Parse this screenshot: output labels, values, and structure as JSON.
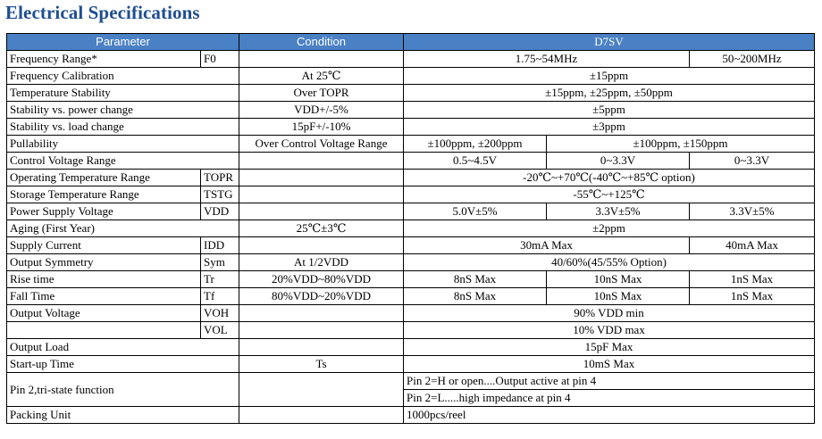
{
  "title": "Electrical Specifications",
  "headers": {
    "parameter": "Parameter",
    "condition": "Condition",
    "model": "D7SV"
  },
  "rows": {
    "freq_range": {
      "param": "Frequency Range*",
      "sym": "F0",
      "v1": "1.75~54MHz",
      "v2": "50~200MHz"
    },
    "freq_cal": {
      "param": "Frequency Calibration",
      "cond": "At 25℃",
      "v": "±15ppm"
    },
    "temp_stab": {
      "param": "Temperature Stability",
      "cond": "Over TOPR",
      "v": "±15ppm, ±25ppm, ±50ppm"
    },
    "stab_power": {
      "param": "Stability vs. power change",
      "cond": "VDD+/-5%",
      "v": "±5ppm"
    },
    "stab_load": {
      "param": "Stability vs. load change",
      "cond": "15pF+/-10%",
      "v": "±3ppm"
    },
    "pull": {
      "param": "Pullability",
      "cond": "Over Control Voltage Range",
      "v1": "±100ppm, ±200ppm",
      "v2": "±100ppm, ±150ppm"
    },
    "ctrl_v": {
      "param": "Control Voltage Range",
      "v1": "0.5~4.5V",
      "v2": "0~3.3V",
      "v3": "0~3.3V"
    },
    "op_temp": {
      "param": "Operating Temperature Range",
      "sym": "TOPR",
      "v": "-20℃~+70℃(-40℃~+85℃ option)"
    },
    "st_temp": {
      "param": "Storage Temperature Range",
      "sym": "TSTG",
      "v": "-55℃~+125℃"
    },
    "psv": {
      "param": "Power Supply Voltage",
      "sym": "VDD",
      "v1": "5.0V±5%",
      "v2": "3.3V±5%",
      "v3": "3.3V±5%"
    },
    "aging": {
      "param": "Aging (First Year)",
      "cond": "25℃±3℃",
      "v": "±2ppm"
    },
    "supply_i": {
      "param": "Supply Current",
      "sym": "IDD",
      "v1": "30mA Max",
      "v2": "40mA Max"
    },
    "symmetry": {
      "param": "Output Symmetry",
      "sym": "Sym",
      "cond": "At 1/2VDD",
      "v": "40/60%(45/55% Option)"
    },
    "rise": {
      "param": "Rise time",
      "sym": "Tr",
      "cond": "20%VDD~80%VDD",
      "v1": "8nS Max",
      "v2": "10nS Max",
      "v3": "1nS Max"
    },
    "fall": {
      "param": "Fall Time",
      "sym": "Tf",
      "cond": "80%VDD~20%VDD",
      "v1": "8nS Max",
      "v2": "10nS Max",
      "v3": "1nS Max"
    },
    "out_v": {
      "param": "Output Voltage",
      "sym_h": "VOH",
      "v_h": "90% VDD min",
      "sym_l": "VOL",
      "v_l": "10% VDD max"
    },
    "out_load": {
      "param": "Output Load",
      "v": "15pF Max"
    },
    "startup": {
      "param": "Start-up Time",
      "cond": "Ts",
      "v": "10mS Max"
    },
    "tristate": {
      "param": "Pin 2,tri-state function",
      "v1": "Pin 2=H or open....Output active at pin 4",
      "v2": "Pin 2=L.....high impedance at pin 4"
    },
    "packing": {
      "param": "Packing Unit",
      "v": "1000pcs/reel"
    }
  }
}
